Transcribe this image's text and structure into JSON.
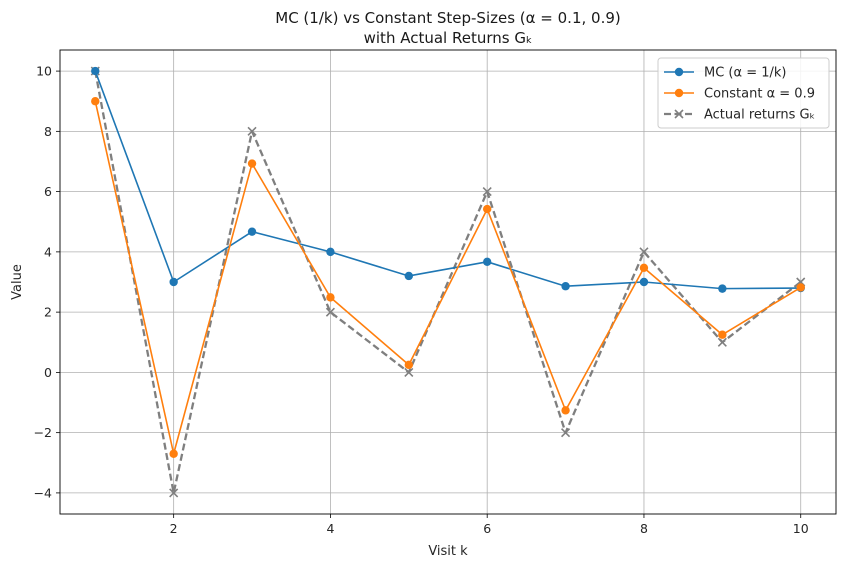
{
  "chart_data": {
    "type": "line",
    "title_line1": "MC (1/k) vs Constant Step-Sizes (α = 0.1, 0.9)",
    "title_line2": "with Actual Returns Gₖ",
    "xlabel": "Visit k",
    "ylabel": "Value",
    "xlim": [
      0.55,
      10.45
    ],
    "ylim": [
      -4.7,
      10.7
    ],
    "xticks": [
      2,
      4,
      6,
      8,
      10
    ],
    "yticks": [
      -4,
      -2,
      0,
      2,
      4,
      6,
      8,
      10
    ],
    "grid": true,
    "legend_position": "top-right",
    "x": [
      1,
      2,
      3,
      4,
      5,
      6,
      7,
      8,
      9,
      10
    ],
    "series": [
      {
        "name": "MC (α = 1/k)",
        "color": "#1f77b4",
        "style": "solid",
        "marker": "circle",
        "values": [
          10,
          3,
          4.67,
          4,
          3.2,
          3.67,
          2.86,
          3,
          2.78,
          2.8
        ]
      },
      {
        "name": "Constant α = 0.9",
        "color": "#ff7f0e",
        "style": "solid",
        "marker": "circle",
        "values": [
          9,
          -2.7,
          6.93,
          2.49,
          0.25,
          5.42,
          -1.26,
          3.47,
          1.25,
          2.82
        ]
      },
      {
        "name": "Actual returns Gₖ",
        "color": "#7f7f7f",
        "style": "dashed",
        "marker": "x",
        "values": [
          10,
          -4,
          8,
          2,
          0,
          6,
          -2,
          4,
          1,
          3
        ]
      }
    ]
  }
}
